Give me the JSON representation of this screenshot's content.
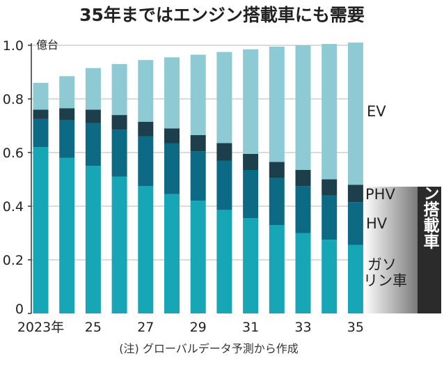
{
  "chart_data": {
    "type": "bar",
    "stacked": true,
    "title": "35年まではエンジン搭載車にも需要",
    "unit_label": "億台",
    "note": "(注) グローバルデータ予測から作成",
    "ylim": [
      0,
      1.0
    ],
    "yticks": [
      {
        "value": 0,
        "label": "0"
      },
      {
        "value": 0.2,
        "label": "0.2"
      },
      {
        "value": 0.4,
        "label": "0.4"
      },
      {
        "value": 0.6,
        "label": "0.6"
      },
      {
        "value": 0.8,
        "label": "0.8"
      },
      {
        "value": 1.0,
        "label": "1.0"
      }
    ],
    "categories": [
      "2023",
      "2024",
      "2025",
      "2026",
      "2027",
      "2028",
      "2029",
      "2030",
      "2031",
      "2032",
      "2033",
      "2034",
      "2035"
    ],
    "xtick_labels": [
      "2023年",
      "",
      "25",
      "",
      "27",
      "",
      "29",
      "",
      "31",
      "",
      "33",
      "",
      "35"
    ],
    "series": [
      {
        "name": "ガソリン車",
        "color": "#17a6b6",
        "values": [
          0.62,
          0.58,
          0.55,
          0.51,
          0.475,
          0.445,
          0.42,
          0.385,
          0.355,
          0.33,
          0.3,
          0.275,
          0.255
        ]
      },
      {
        "name": "HV",
        "color": "#0c6a84",
        "values": [
          0.105,
          0.14,
          0.16,
          0.175,
          0.185,
          0.19,
          0.185,
          0.185,
          0.18,
          0.175,
          0.175,
          0.165,
          0.16
        ]
      },
      {
        "name": "PHV",
        "color": "#1d3e4b",
        "values": [
          0.035,
          0.045,
          0.05,
          0.055,
          0.055,
          0.055,
          0.06,
          0.065,
          0.06,
          0.06,
          0.06,
          0.06,
          0.065
        ]
      },
      {
        "name": "EV",
        "color": "#8ecad3",
        "values": [
          0.1,
          0.12,
          0.155,
          0.19,
          0.23,
          0.265,
          0.3,
          0.34,
          0.39,
          0.43,
          0.465,
          0.505,
          0.53
        ]
      }
    ],
    "segment_labels": {
      "ev": "EV",
      "phv": "PHV",
      "hv": "HV",
      "gas_line1": "ガソ",
      "gas_line2": "リン車"
    },
    "group_label": "エンジン搭載車",
    "colors": {
      "axis": "#333333",
      "grid": "#b7b7b7",
      "group_box": "#2b2b2b",
      "group_gradient_start": "#ffffff",
      "group_gradient_end": "#7a7a7a"
    }
  }
}
